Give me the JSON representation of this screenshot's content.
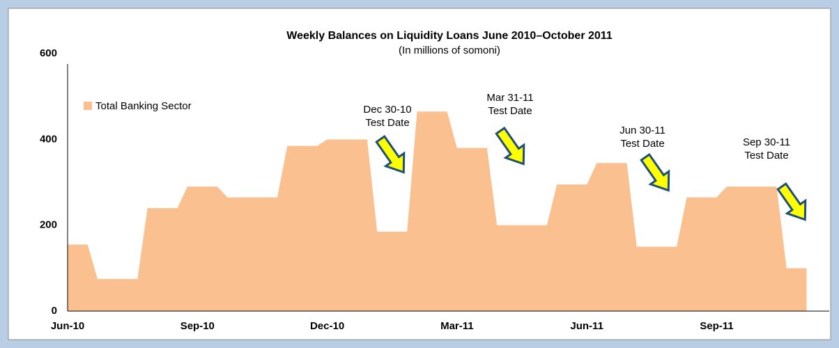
{
  "chart_data": {
    "type": "area",
    "title": "Weekly Balances on Liquidity Loans June 2010–October 2011",
    "subtitle": "(In millions of somoni)",
    "categories": [
      "Jun-10",
      null,
      null,
      null,
      null,
      null,
      null,
      null,
      null,
      null,
      null,
      null,
      null,
      "Sep-10",
      null,
      null,
      null,
      null,
      null,
      null,
      null,
      null,
      null,
      null,
      null,
      null,
      "Dec-10",
      null,
      null,
      null,
      null,
      null,
      null,
      null,
      null,
      null,
      null,
      null,
      null,
      "Mar-11",
      null,
      null,
      null,
      null,
      null,
      null,
      null,
      null,
      null,
      null,
      null,
      null,
      "Jun-11",
      null,
      null,
      null,
      null,
      null,
      null,
      null,
      null,
      null,
      null,
      null,
      null,
      "Sep-11",
      null,
      null,
      null,
      null,
      null,
      null,
      null,
      null,
      null
    ],
    "series": [
      {
        "name": "Total Banking Sector",
        "color": "#fac090",
        "values": [
          155,
          155,
          155,
          75,
          75,
          75,
          75,
          75,
          240,
          240,
          240,
          240,
          290,
          290,
          290,
          290,
          265,
          265,
          265,
          265,
          265,
          265,
          385,
          385,
          385,
          385,
          400,
          400,
          400,
          400,
          400,
          185,
          185,
          185,
          185,
          465,
          465,
          465,
          465,
          380,
          380,
          380,
          380,
          200,
          200,
          200,
          200,
          200,
          200,
          295,
          295,
          295,
          295,
          345,
          345,
          345,
          345,
          150,
          150,
          150,
          150,
          150,
          265,
          265,
          265,
          265,
          290,
          290,
          290,
          290,
          290,
          290,
          100,
          100,
          100
        ]
      }
    ],
    "ylim": [
      0,
      600
    ],
    "yticks": [
      0,
      200,
      400,
      600
    ],
    "grid": false,
    "legend": "upper left",
    "annotations": [
      {
        "lines": [
          "Dec 30-10",
          "Test Date"
        ]
      },
      {
        "lines": [
          "Mar 31-11",
          "Test Date"
        ]
      },
      {
        "lines": [
          "Jun 30-11",
          "Test Date"
        ]
      },
      {
        "lines": [
          "Sep 30-11",
          "Test Date"
        ]
      }
    ]
  }
}
